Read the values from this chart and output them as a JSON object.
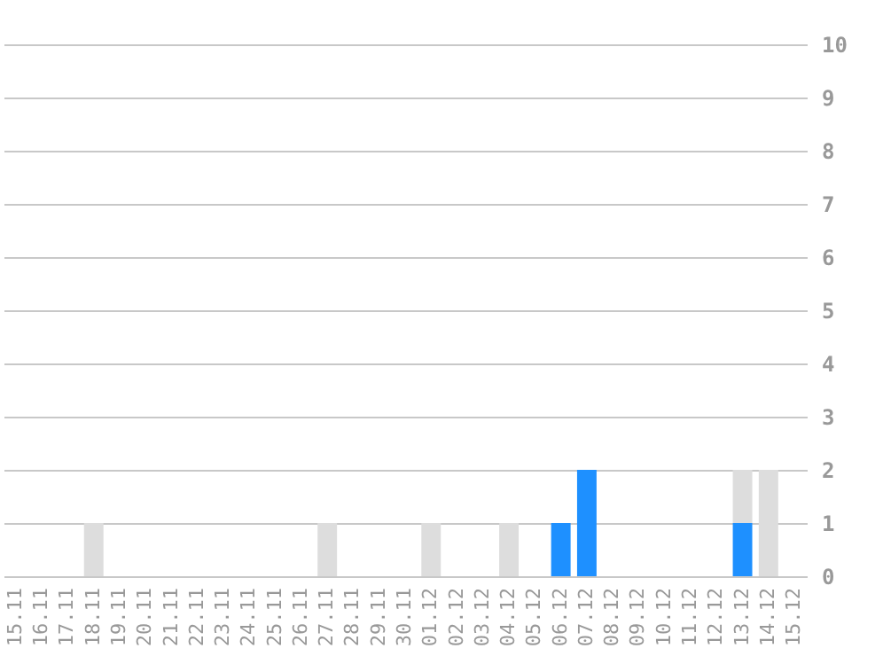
{
  "chart_data": {
    "type": "bar",
    "stacked": true,
    "categories": [
      "15.11",
      "16.11",
      "17.11",
      "18.11",
      "19.11",
      "20.11",
      "21.11",
      "22.11",
      "23.11",
      "24.11",
      "25.11",
      "26.11",
      "27.11",
      "28.11",
      "29.11",
      "30.11",
      "01.12",
      "02.12",
      "03.12",
      "04.12",
      "05.12",
      "06.12",
      "07.12",
      "08.12",
      "09.12",
      "10.12",
      "11.12",
      "12.12",
      "13.12",
      "14.12",
      "15.12"
    ],
    "series": [
      {
        "color": "#1e90ff",
        "values": [
          0,
          0,
          0,
          0,
          0,
          0,
          0,
          0,
          0,
          0,
          0,
          0,
          0,
          0,
          0,
          0,
          0,
          0,
          0,
          0,
          0,
          1,
          2,
          0,
          0,
          0,
          0,
          0,
          1,
          0,
          0
        ]
      },
      {
        "color": "#dddddd",
        "values": [
          0,
          0,
          0,
          1,
          0,
          0,
          0,
          0,
          0,
          0,
          0,
          0,
          1,
          0,
          0,
          0,
          1,
          0,
          0,
          1,
          0,
          0,
          0,
          0,
          0,
          0,
          0,
          0,
          1,
          2,
          0
        ]
      }
    ],
    "ylim": [
      0,
      10
    ],
    "yticks": [
      0,
      1,
      2,
      3,
      4,
      5,
      6,
      7,
      8,
      9,
      10
    ],
    "grid": "y",
    "legend": false
  }
}
